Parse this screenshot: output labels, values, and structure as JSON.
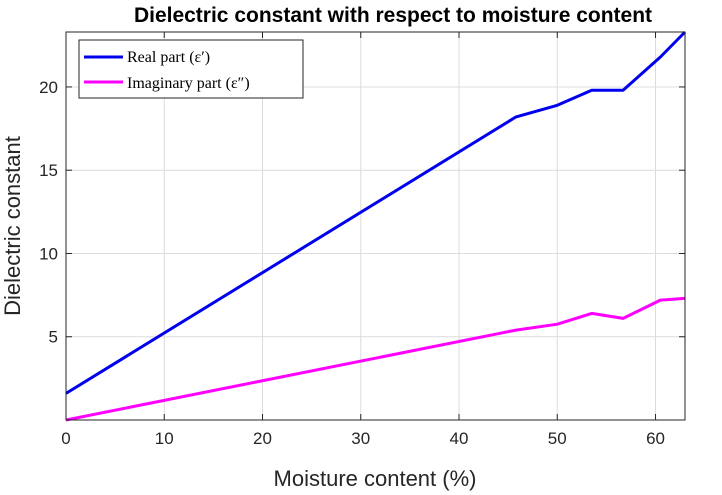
{
  "chart_data": {
    "type": "line",
    "title": "Dielectric constant with respect to moisture content",
    "xlabel": "Moisture content (%)",
    "ylabel": "Dielectric constant",
    "xlim": [
      0,
      63
    ],
    "ylim": [
      0,
      23.3
    ],
    "xticks": [
      0,
      10,
      20,
      30,
      40,
      50,
      60
    ],
    "yticks": [
      5,
      10,
      15,
      20
    ],
    "grid": true,
    "legend_position": "top-left",
    "series": [
      {
        "name": "Real part (ε′)",
        "color": "#0000ee",
        "x": [
          0,
          45.8,
          50,
          53.5,
          56.7,
          60.5,
          63
        ],
        "y": [
          1.6,
          18.2,
          18.9,
          19.8,
          19.8,
          21.8,
          23.3
        ]
      },
      {
        "name": "Imaginary part (ε″)",
        "color": "#ff00ff",
        "x": [
          0,
          45.8,
          50,
          53.5,
          56.7,
          60.5,
          63
        ],
        "y": [
          0.0,
          5.4,
          5.75,
          6.4,
          6.1,
          7.2,
          7.3
        ]
      }
    ]
  }
}
